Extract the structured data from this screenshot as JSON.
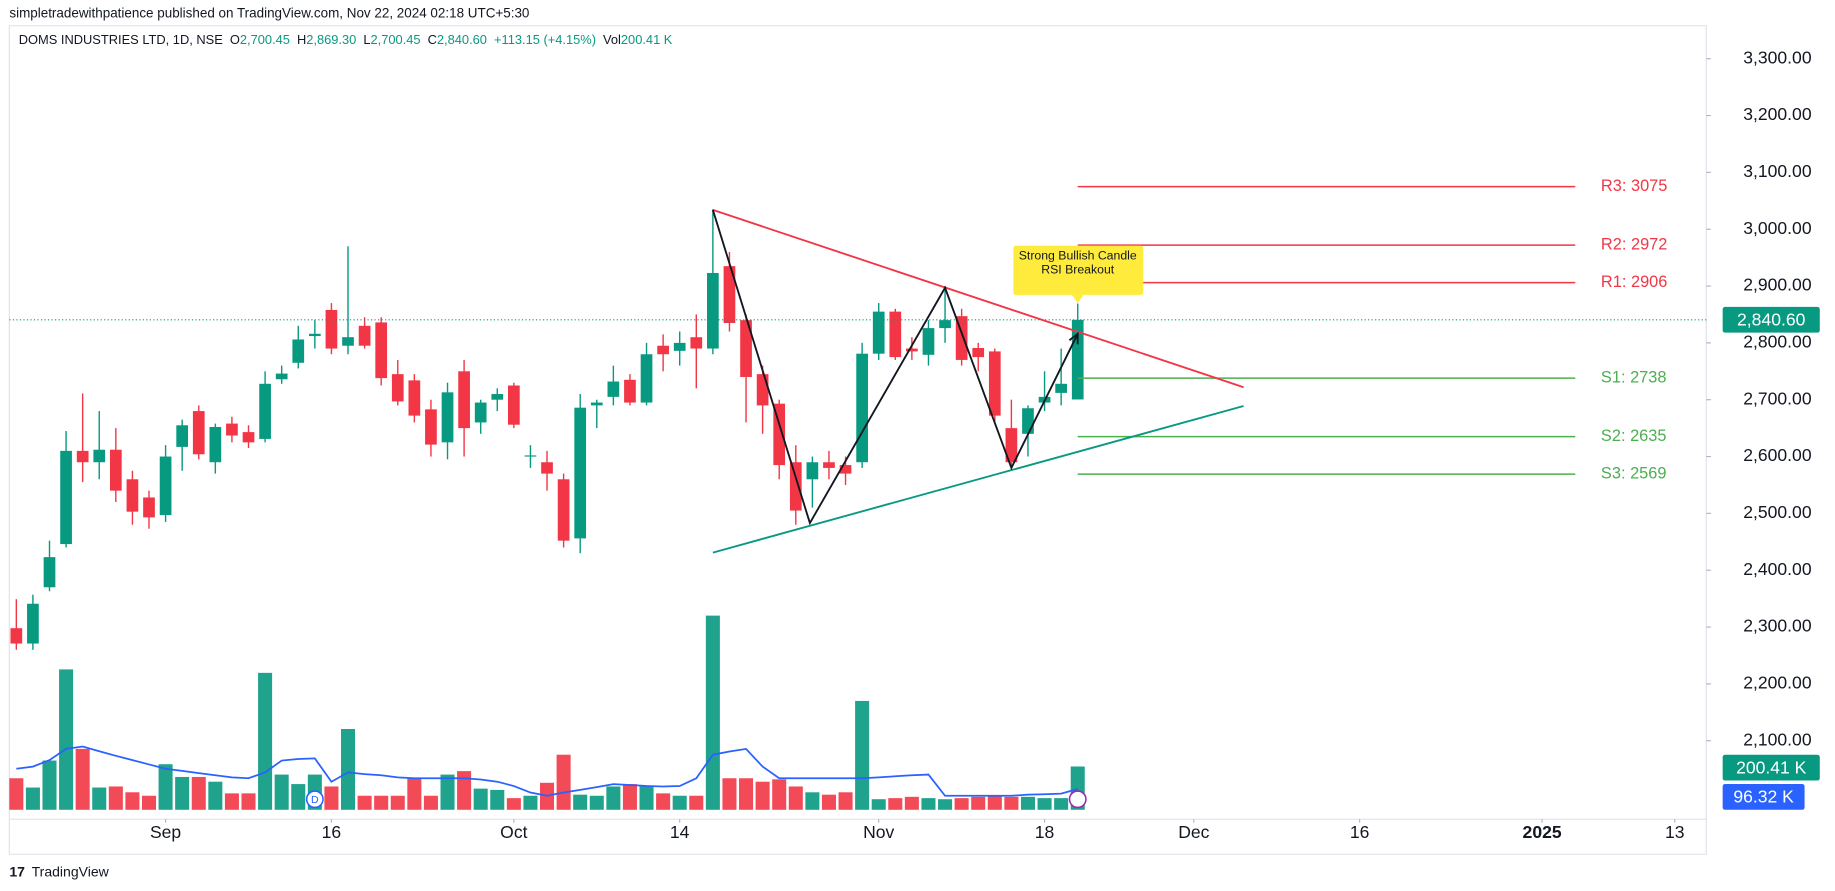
{
  "header": "simpletradewithpatience published on TradingView.com, Nov 22, 2024 02:18 UTC+5:30",
  "footer": "TradingView",
  "chart_data": {
    "type": "candlestick",
    "symbol": "DOMS INDUSTRIES LTD, 1D, NSE",
    "ohlc_legend": [
      [
        "O",
        "2,700.45"
      ],
      [
        "H",
        "2,869.30"
      ],
      [
        "L",
        "2,700.45"
      ],
      [
        "C",
        "2,840.60"
      ]
    ],
    "change": "+113.15 (+4.15%)",
    "volume_legend": [
      "Vol",
      "200.41 K"
    ],
    "up_color": "#089981",
    "down_color": "#f23645",
    "open": [
      2298,
      2271,
      2370,
      2446,
      2610,
      2590,
      2612,
      2560,
      2528,
      2497,
      2617,
      2680,
      2590,
      2658,
      2643,
      2631,
      2736,
      2765,
      2812,
      2858,
      2795,
      2830,
      2836,
      2745,
      2734,
      2683,
      2625,
      2750,
      2660,
      2700,
      2725,
      2600,
      2590,
      2560,
      2456,
      2690,
      2705,
      2735,
      2695,
      2795,
      2786,
      2810,
      2790,
      2935,
      2840,
      2745,
      2693,
      2590,
      2560,
      2590,
      2585,
      2590,
      2781,
      2855,
      2790,
      2779,
      2826,
      2847,
      2791,
      2785,
      2650,
      2640,
      2695,
      2712,
      2700.45
    ],
    "high": [
      2349,
      2357,
      2452,
      2645,
      2711,
      2680,
      2650,
      2575,
      2540,
      2620,
      2665,
      2690,
      2658,
      2670,
      2655,
      2750,
      2760,
      2830,
      2840,
      2870,
      2970,
      2845,
      2845,
      2770,
      2745,
      2700,
      2730,
      2770,
      2700,
      2720,
      2730,
      2620,
      2610,
      2570,
      2710,
      2700,
      2760,
      2745,
      2800,
      2815,
      2820,
      2850,
      3035,
      2960,
      2850,
      2760,
      2700,
      2620,
      2600,
      2610,
      2600,
      2800,
      2870,
      2860,
      2810,
      2840,
      2900,
      2860,
      2800,
      2790,
      2700,
      2690,
      2750,
      2790,
      2869.3
    ],
    "low": [
      2260,
      2260,
      2363,
      2440,
      2555,
      2560,
      2520,
      2480,
      2473,
      2485,
      2575,
      2595,
      2570,
      2625,
      2615,
      2625,
      2728,
      2755,
      2790,
      2780,
      2780,
      2790,
      2725,
      2690,
      2660,
      2600,
      2595,
      2600,
      2640,
      2680,
      2650,
      2580,
      2540,
      2440,
      2430,
      2650,
      2690,
      2690,
      2690,
      2750,
      2760,
      2720,
      2780,
      2820,
      2660,
      2640,
      2560,
      2480,
      2510,
      2560,
      2550,
      2580,
      2770,
      2770,
      2770,
      2760,
      2800,
      2760,
      2750,
      2660,
      2575,
      2600,
      2680,
      2690,
      2700.45
    ],
    "close": [
      2271,
      2341,
      2423,
      2610,
      2590,
      2612,
      2540,
      2503,
      2493,
      2600,
      2655,
      2604,
      2652,
      2637,
      2625,
      2728,
      2746,
      2806,
      2816,
      2790,
      2810,
      2795,
      2738,
      2697,
      2672,
      2621,
      2713,
      2650,
      2695,
      2710,
      2656,
      2602,
      2570,
      2452,
      2686,
      2695,
      2732,
      2695,
      2780,
      2780,
      2800,
      2790,
      2923,
      2835,
      2740,
      2690,
      2585,
      2505,
      2590,
      2580,
      2570,
      2781,
      2855,
      2775,
      2785,
      2826,
      2840,
      2770,
      2775,
      2672,
      2590,
      2685,
      2705,
      2728,
      2840.6
    ],
    "volume": {
      "values": [
        146,
        103,
        228,
        650,
        282,
        103,
        108,
        81,
        65,
        211,
        152,
        152,
        130,
        76,
        76,
        634,
        163,
        119,
        163,
        108,
        374,
        65,
        65,
        65,
        146,
        65,
        163,
        179,
        98,
        92,
        54,
        65,
        125,
        255,
        70,
        65,
        108,
        119,
        108,
        76,
        65,
        65,
        899,
        146,
        146,
        130,
        141,
        108,
        81,
        70,
        81,
        504,
        49,
        54,
        60,
        54,
        49,
        54,
        60,
        65,
        60,
        60,
        54,
        54,
        200.41
      ],
      "last_label": "200.41 K",
      "ylim": [
        0,
        3630
      ]
    },
    "volume_ma": {
      "values": [
        190,
        200,
        230,
        282,
        293,
        271,
        250,
        230,
        210,
        190,
        180,
        170,
        160,
        150,
        146,
        173,
        228,
        235,
        238,
        130,
        173,
        165,
        160,
        150,
        146,
        146,
        146,
        146,
        140,
        130,
        110,
        80,
        65,
        80,
        92,
        105,
        119,
        115,
        110,
        108,
        110,
        146,
        255,
        270,
        282,
        200,
        146,
        146,
        146,
        146,
        146,
        146,
        150,
        155,
        160,
        163,
        65,
        65,
        65,
        65,
        65,
        70,
        72,
        75,
        96.32
      ],
      "last_label": "96.32 K",
      "color": "#2962ff"
    },
    "last_price": {
      "value": 2840.6,
      "label": "2,840.60"
    },
    "xlim": [
      -0.42,
      101.9
    ],
    "xticks": [
      {
        "value": 9,
        "label": "Sep"
      },
      {
        "value": 19,
        "label": "16"
      },
      {
        "value": 30,
        "label": "Oct"
      },
      {
        "value": 40,
        "label": "14"
      },
      {
        "value": 52,
        "label": "Nov"
      },
      {
        "value": 62,
        "label": "18"
      },
      {
        "value": 71,
        "label": "Dec"
      },
      {
        "value": 81,
        "label": "16"
      },
      {
        "value": 92,
        "label": "2025"
      },
      {
        "value": 100,
        "label": "13"
      }
    ],
    "ylim": [
      1962,
      3358
    ],
    "yticks": [
      {
        "value": 2100,
        "label": "2,100.00"
      },
      {
        "value": 2200,
        "label": "2,200.00"
      },
      {
        "value": 2300,
        "label": "2,300.00"
      },
      {
        "value": 2400,
        "label": "2,400.00"
      },
      {
        "value": 2500,
        "label": "2,500.00"
      },
      {
        "value": 2600,
        "label": "2,600.00"
      },
      {
        "value": 2700,
        "label": "2,700.00"
      },
      {
        "value": 2800,
        "label": "2,800.00"
      },
      {
        "value": 2900,
        "label": "2,900.00"
      },
      {
        "value": 3000,
        "label": "3,000.00"
      },
      {
        "value": 3100,
        "label": "3,100.00"
      },
      {
        "value": 3200,
        "label": "3,200.00"
      },
      {
        "value": 3300,
        "label": "3,300.00"
      }
    ],
    "grid": false,
    "levels": [
      {
        "label": "R3: 3075",
        "value": 3075,
        "color": "#f23645"
      },
      {
        "label": "R2: 2972",
        "value": 2972,
        "color": "#f23645"
      },
      {
        "label": "R1: 2906",
        "value": 2906,
        "color": "#f23645"
      },
      {
        "label": "S1: 2738",
        "value": 2738,
        "color": "#4caf50"
      },
      {
        "label": "S2: 2635",
        "value": 2635,
        "color": "#4caf50"
      },
      {
        "label": "S3: 2569",
        "value": 2569,
        "color": "#4caf50"
      }
    ],
    "level_span": [
      64,
      94
    ],
    "trendlines": [
      {
        "color": "#f23645",
        "points": [
          [
            42,
            3034
          ],
          [
            74,
            2722
          ]
        ]
      },
      {
        "color": "#089981",
        "points": [
          [
            42,
            2431
          ],
          [
            74,
            2689
          ]
        ]
      },
      {
        "color": "#131722",
        "points": [
          [
            42,
            3034
          ],
          [
            47.85,
            2483
          ],
          [
            56,
            2897
          ],
          [
            60,
            2580
          ],
          [
            64,
            2816
          ]
        ]
      }
    ],
    "annotation": [
      "Strong Bullish Candle",
      "RSI Breakout"
    ]
  }
}
